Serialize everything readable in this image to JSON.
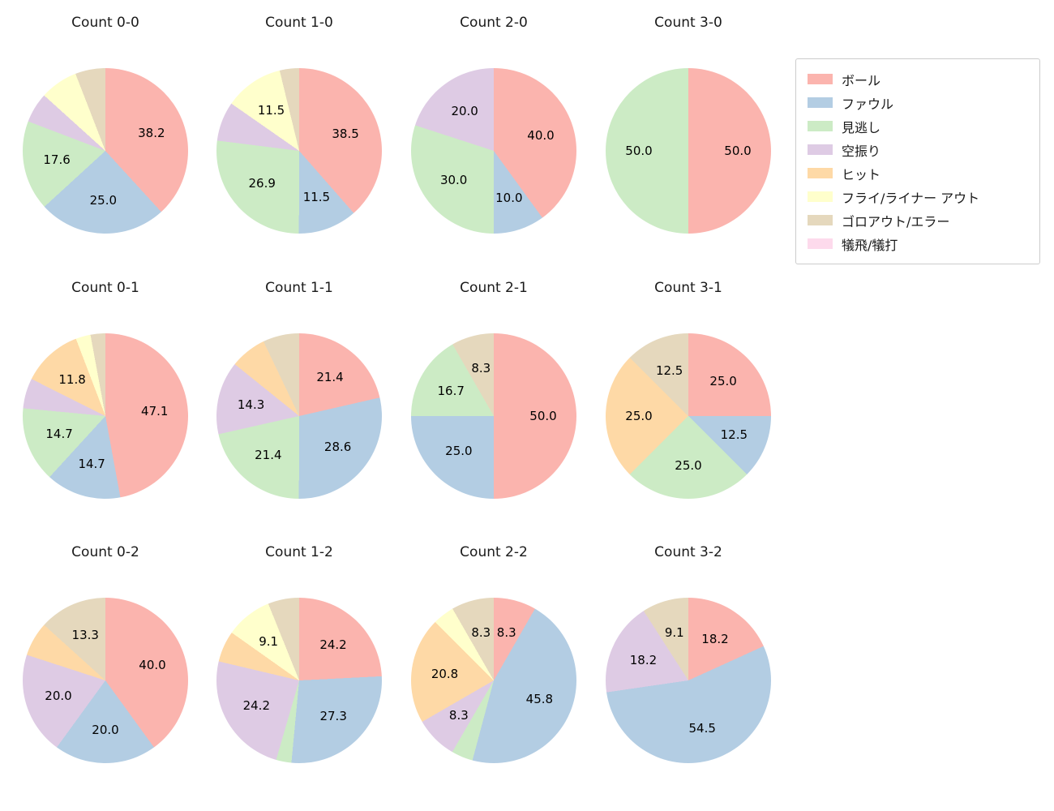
{
  "figure": {
    "background": "#ffffff"
  },
  "legend": {
    "items": [
      {
        "label": "ボール",
        "color": "#fbb4ae"
      },
      {
        "label": "ファウル",
        "color": "#b3cde3"
      },
      {
        "label": "見逃し",
        "color": "#ccebc5"
      },
      {
        "label": "空振り",
        "color": "#decbe4"
      },
      {
        "label": "ヒット",
        "color": "#fed9a6"
      },
      {
        "label": "フライ/ライナー アウト",
        "color": "#ffffcc"
      },
      {
        "label": "ゴロアウト/エラー",
        "color": "#e5d8bd"
      },
      {
        "label": "犠飛/犠打",
        "color": "#fddaec"
      }
    ]
  },
  "chart_data": {
    "type": "pie",
    "grid": {
      "columns": 4,
      "rows": 3
    },
    "categories": [
      "ボール",
      "ファウル",
      "見逃し",
      "空振り",
      "ヒット",
      "フライ/ライナー アウト",
      "ゴロアウト/エラー",
      "犠飛/犠打"
    ],
    "colors": [
      "#fbb4ae",
      "#b3cde3",
      "#ccebc5",
      "#decbe4",
      "#fed9a6",
      "#ffffcc",
      "#e5d8bd",
      "#fddaec"
    ],
    "start_angle": "top",
    "direction": "clockwise",
    "label_threshold_pct": 8,
    "legend_position": "upper right",
    "pies": [
      {
        "title": "Count 0-0",
        "values": [
          38.2,
          25.0,
          17.6,
          5.9,
          0,
          7.4,
          5.9,
          0
        ]
      },
      {
        "title": "Count 1-0",
        "values": [
          38.5,
          11.5,
          26.9,
          7.7,
          0,
          11.5,
          3.8,
          0
        ]
      },
      {
        "title": "Count 2-0",
        "values": [
          40.0,
          10.0,
          30.0,
          20.0,
          0,
          0,
          0,
          0
        ]
      },
      {
        "title": "Count 3-0",
        "values": [
          50.0,
          0,
          50.0,
          0,
          0,
          0,
          0,
          0
        ]
      },
      {
        "title": "Count 0-1",
        "values": [
          47.1,
          14.7,
          14.7,
          5.9,
          11.8,
          2.9,
          2.9,
          0
        ]
      },
      {
        "title": "Count 1-1",
        "values": [
          21.4,
          28.6,
          21.4,
          14.3,
          7.1,
          0,
          7.1,
          0
        ]
      },
      {
        "title": "Count 2-1",
        "values": [
          50.0,
          25.0,
          16.7,
          0,
          0,
          0,
          8.3,
          0
        ]
      },
      {
        "title": "Count 3-1",
        "values": [
          25.0,
          12.5,
          25.0,
          0,
          25.0,
          0,
          12.5,
          0
        ]
      },
      {
        "title": "Count 0-2",
        "values": [
          40.0,
          20.0,
          0,
          20.0,
          6.7,
          0,
          13.3,
          0
        ]
      },
      {
        "title": "Count 1-2",
        "values": [
          24.2,
          27.3,
          3.0,
          24.2,
          6.1,
          9.1,
          6.1,
          0
        ]
      },
      {
        "title": "Count 2-2",
        "values": [
          8.3,
          45.8,
          4.2,
          8.3,
          20.8,
          4.2,
          8.3,
          0
        ]
      },
      {
        "title": "Count 3-2",
        "values": [
          18.2,
          54.5,
          0,
          18.2,
          0,
          0,
          9.1,
          0
        ]
      }
    ]
  }
}
